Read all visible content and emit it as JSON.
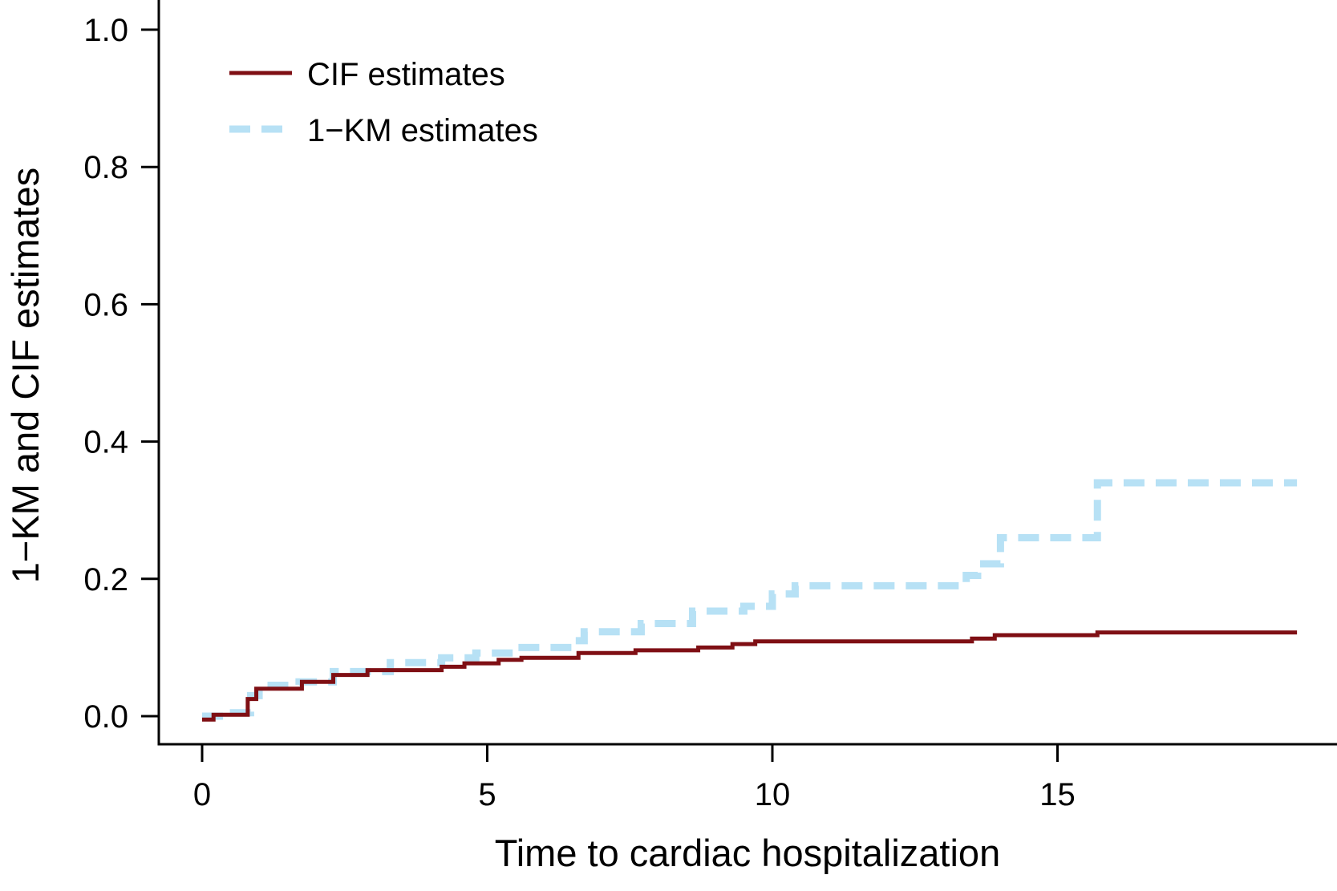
{
  "colors": {
    "cif": "#7f0f14",
    "km": "#b7e1f5",
    "axis": "#000000"
  },
  "chart_data": {
    "type": "line",
    "title": "",
    "xlabel": "Time to cardiac hospitalization",
    "ylabel": "1−KM and CIF estimates",
    "xlim": [
      0,
      19.3
    ],
    "ylim": [
      -0.02,
      1.0
    ],
    "xticks": [
      0,
      5,
      10,
      15
    ],
    "xtick_labels": [
      "0",
      "5",
      "10",
      "15"
    ],
    "yticks": [
      0.0,
      0.2,
      0.4,
      0.6,
      0.8,
      1.0
    ],
    "ytick_labels": [
      "0.0",
      "0.2",
      "0.4",
      "0.6",
      "0.8",
      "1.0"
    ],
    "legend": {
      "position": "top-left",
      "entries": [
        "CIF estimates",
        "1−KM estimates"
      ]
    },
    "series": [
      {
        "name": "CIF estimates",
        "style": "solid",
        "step": true,
        "points": [
          [
            0,
            -0.005
          ],
          [
            0.2,
            0.002
          ],
          [
            0.55,
            0.002
          ],
          [
            0.8,
            0.025
          ],
          [
            0.95,
            0.04
          ],
          [
            1.75,
            0.05
          ],
          [
            2.3,
            0.06
          ],
          [
            2.9,
            0.067
          ],
          [
            4.2,
            0.072
          ],
          [
            4.6,
            0.077
          ],
          [
            5.2,
            0.082
          ],
          [
            5.6,
            0.085
          ],
          [
            6.6,
            0.092
          ],
          [
            7.6,
            0.096
          ],
          [
            8.7,
            0.1
          ],
          [
            9.3,
            0.105
          ],
          [
            9.7,
            0.109
          ],
          [
            13.5,
            0.113
          ],
          [
            13.9,
            0.118
          ],
          [
            15.7,
            0.122
          ],
          [
            19.2,
            0.122
          ]
        ]
      },
      {
        "name": "1−KM estimates",
        "style": "dashed",
        "step": true,
        "points": [
          [
            0,
            0.0
          ],
          [
            0.55,
            0.005
          ],
          [
            0.85,
            0.03
          ],
          [
            1.0,
            0.045
          ],
          [
            1.7,
            0.05
          ],
          [
            2.3,
            0.065
          ],
          [
            3.3,
            0.078
          ],
          [
            4.2,
            0.085
          ],
          [
            4.8,
            0.092
          ],
          [
            5.5,
            0.1
          ],
          [
            6.5,
            0.11
          ],
          [
            6.7,
            0.123
          ],
          [
            7.7,
            0.135
          ],
          [
            8.6,
            0.153
          ],
          [
            9.5,
            0.16
          ],
          [
            10.0,
            0.178
          ],
          [
            10.4,
            0.19
          ],
          [
            13.4,
            0.205
          ],
          [
            13.6,
            0.222
          ],
          [
            14.0,
            0.26
          ],
          [
            15.7,
            0.34
          ],
          [
            19.2,
            0.34
          ]
        ]
      }
    ]
  }
}
